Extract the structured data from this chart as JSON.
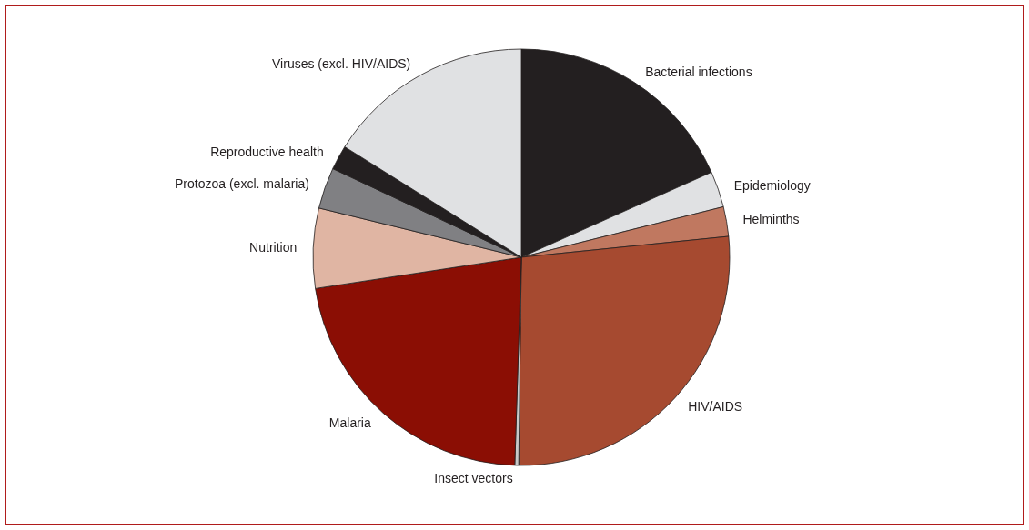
{
  "chart_data": {
    "type": "pie",
    "categories": [
      "Bacterial infections",
      "Epidemiology",
      "Helminths",
      "HIV/AIDS",
      "Insect vectors",
      "Malaria",
      "Nutrition",
      "Protozoa (excl. malaria)",
      "Reproductive health",
      "Viruses (excl. HIV/AIDS)"
    ],
    "values": [
      18.3,
      2.8,
      2.3,
      26.8,
      0.3,
      22.1,
      6.2,
      3.2,
      1.9,
      16.1
    ],
    "colors": [
      "#231f20",
      "#e0e1e3",
      "#c07860",
      "#a64a30",
      "#c8c8c8",
      "#8b0e04",
      "#e0b5a3",
      "#808083",
      "#231f20",
      "#e0e1e3"
    ],
    "legend": false
  }
}
